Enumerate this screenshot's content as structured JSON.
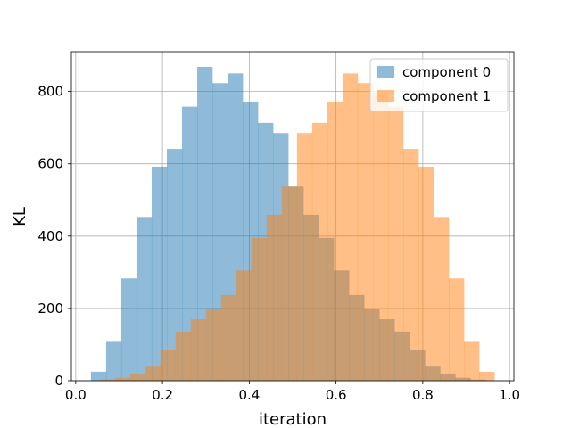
{
  "chart_data": {
    "type": "bar",
    "subtype": "overlaid histogram",
    "title": "",
    "xlabel": "iteration",
    "ylabel": "KL",
    "xlim": [
      -0.01,
      1.01
    ],
    "ylim": [
      0,
      910
    ],
    "xticks": [
      0.0,
      0.2,
      0.4,
      0.6,
      0.8,
      1.0
    ],
    "xtick_labels": [
      "0.0",
      "0.2",
      "0.4",
      "0.6",
      "0.8",
      "1.0"
    ],
    "yticks": [
      0,
      200,
      400,
      600,
      800
    ],
    "ytick_labels": [
      "0",
      "200",
      "400",
      "600",
      "800"
    ],
    "grid": true,
    "legend_position": "top-right",
    "series": [
      {
        "name": "component 0",
        "color": "#1f77b4",
        "alpha": 0.5,
        "bin_edges": [
          0.035,
          0.07,
          0.105,
          0.14,
          0.175,
          0.21,
          0.245,
          0.28,
          0.315,
          0.35,
          0.385,
          0.42,
          0.455,
          0.49,
          0.525,
          0.56,
          0.595,
          0.63,
          0.665,
          0.7,
          0.735,
          0.77,
          0.805,
          0.84,
          0.875,
          0.91,
          0.945
        ],
        "values": [
          25,
          110,
          283,
          453,
          592,
          641,
          758,
          868,
          823,
          850,
          772,
          713,
          685,
          537,
          459,
          395,
          305,
          237,
          198,
          170,
          136,
          86,
          39,
          20,
          8,
          3
        ]
      },
      {
        "name": "component 1",
        "color": "#ff7f0e",
        "alpha": 0.5,
        "bin_edges": [
          0.055,
          0.09,
          0.125,
          0.16,
          0.195,
          0.23,
          0.265,
          0.3,
          0.335,
          0.37,
          0.405,
          0.44,
          0.475,
          0.51,
          0.545,
          0.58,
          0.615,
          0.65,
          0.685,
          0.72,
          0.755,
          0.79,
          0.825,
          0.86,
          0.895,
          0.93,
          0.965
        ],
        "values": [
          3,
          8,
          20,
          39,
          86,
          136,
          170,
          198,
          237,
          305,
          395,
          459,
          537,
          685,
          713,
          772,
          850,
          823,
          798,
          758,
          641,
          592,
          453,
          283,
          110,
          25
        ]
      }
    ]
  }
}
